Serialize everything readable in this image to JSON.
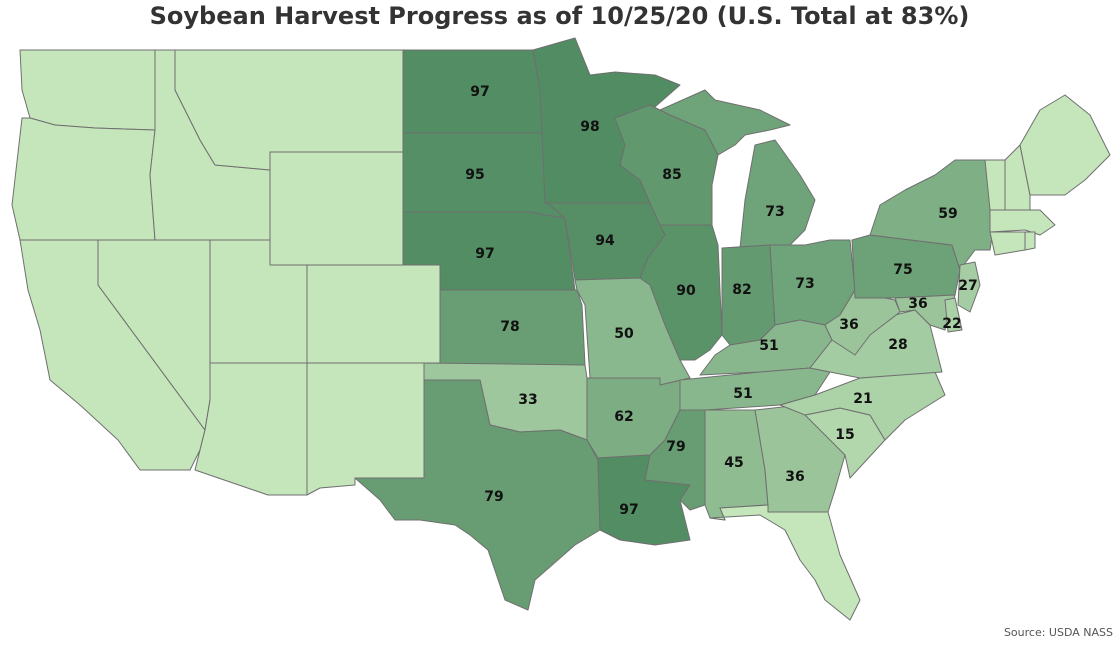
{
  "title": "Soybean Harvest Progress as of 10/25/20 (U.S. Total at 83%)",
  "source": "Source: USDA NASS",
  "colors": {
    "low": "#c5e5bb",
    "high": "#4f8a60",
    "border": "#6f6f6f",
    "nodata": "#c5e5bb"
  },
  "states": [
    {
      "id": "WA",
      "value": null
    },
    {
      "id": "OR",
      "value": null
    },
    {
      "id": "CA",
      "value": null
    },
    {
      "id": "ID",
      "value": null
    },
    {
      "id": "NV",
      "value": null
    },
    {
      "id": "MT",
      "value": null
    },
    {
      "id": "WY",
      "value": null
    },
    {
      "id": "UT",
      "value": null
    },
    {
      "id": "AZ",
      "value": null
    },
    {
      "id": "CO",
      "value": null
    },
    {
      "id": "NM",
      "value": null
    },
    {
      "id": "ND",
      "value": 97
    },
    {
      "id": "SD",
      "value": 95
    },
    {
      "id": "NE",
      "value": 97
    },
    {
      "id": "KS",
      "value": 78
    },
    {
      "id": "OK",
      "value": 33
    },
    {
      "id": "TX",
      "value": 79
    },
    {
      "id": "MN",
      "value": 98
    },
    {
      "id": "IA",
      "value": 94
    },
    {
      "id": "MO",
      "value": 50
    },
    {
      "id": "AR",
      "value": 62
    },
    {
      "id": "LA",
      "value": 97
    },
    {
      "id": "WI",
      "value": 85
    },
    {
      "id": "IL",
      "value": 90
    },
    {
      "id": "MS",
      "value": 79
    },
    {
      "id": "MI",
      "value": 73
    },
    {
      "id": "IN",
      "value": 82
    },
    {
      "id": "OH",
      "value": 73
    },
    {
      "id": "KY",
      "value": 51
    },
    {
      "id": "TN",
      "value": 51
    },
    {
      "id": "AL",
      "value": 45
    },
    {
      "id": "GA",
      "value": 36
    },
    {
      "id": "FL",
      "value": null
    },
    {
      "id": "SC",
      "value": 15
    },
    {
      "id": "NC",
      "value": 21
    },
    {
      "id": "VA",
      "value": 28
    },
    {
      "id": "WV",
      "value": 36
    },
    {
      "id": "PA",
      "value": 75
    },
    {
      "id": "NY",
      "value": 59
    },
    {
      "id": "MD",
      "value": 36
    },
    {
      "id": "DE",
      "value": 22
    },
    {
      "id": "NJ",
      "value": 27
    },
    {
      "id": "VT",
      "value": null
    },
    {
      "id": "NH",
      "value": null
    },
    {
      "id": "ME",
      "value": null
    },
    {
      "id": "MA",
      "value": null
    },
    {
      "id": "CT",
      "value": null
    },
    {
      "id": "RI",
      "value": null
    }
  ]
}
